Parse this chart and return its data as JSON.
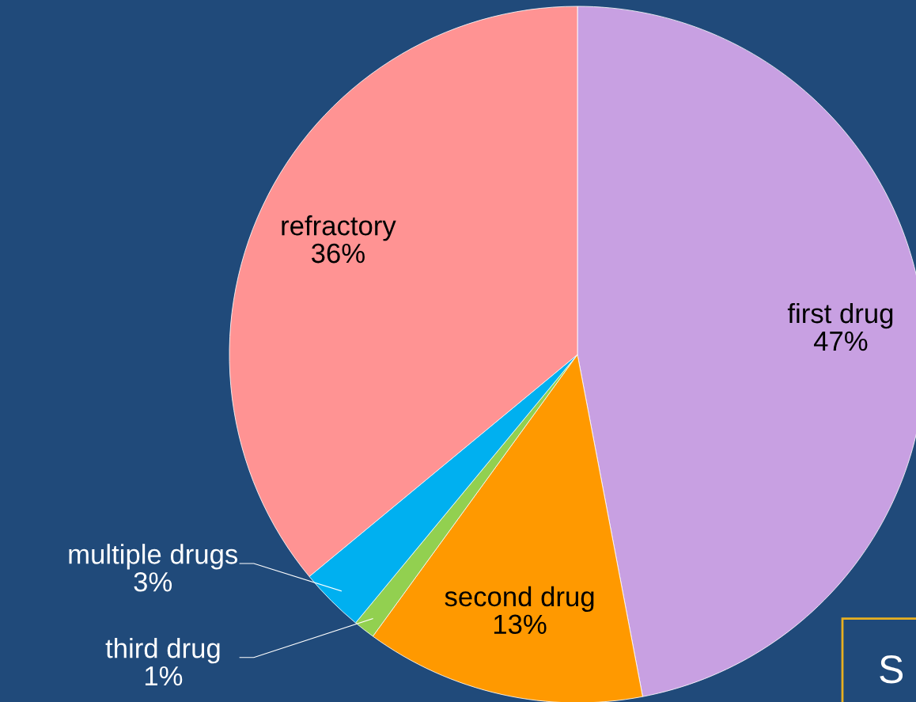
{
  "chart_data": {
    "type": "pie",
    "categories": [
      "first drug",
      "second drug",
      "third drug",
      "multiple drugs",
      "refractory"
    ],
    "values": [
      47,
      13,
      1,
      3,
      36
    ],
    "colors": [
      "#c8a0e2",
      "#ff9900",
      "#92d050",
      "#00b0f0",
      "#ff9393"
    ],
    "value_labels": [
      "47%",
      "13%",
      "1%",
      "3%",
      "36%"
    ],
    "annotations": [
      "S"
    ],
    "legend": false
  }
}
